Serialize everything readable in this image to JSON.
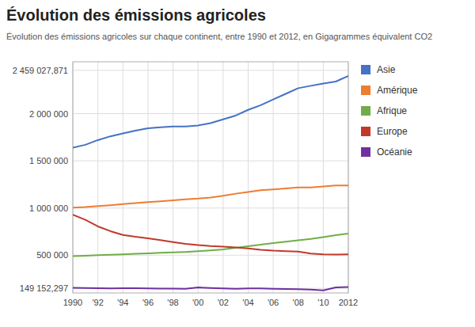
{
  "chart_data": {
    "type": "line",
    "title": "Évolution des émissions agricoles",
    "subtitle": "Évolution des émissions agricoles sur chaque continent, entre 1990 et 2012, en Gigagrammes équivalent CO2",
    "x": [
      1990,
      1991,
      1992,
      1993,
      1994,
      1995,
      1996,
      1997,
      1998,
      1999,
      2000,
      2001,
      2002,
      2003,
      2004,
      2005,
      2006,
      2007,
      2008,
      2009,
      2010,
      2011,
      2012
    ],
    "series": [
      {
        "name": "Asie",
        "color": "#4472C4",
        "values": [
          1640000,
          1670000,
          1720000,
          1760000,
          1790000,
          1820000,
          1845000,
          1855000,
          1865000,
          1865000,
          1875000,
          1900000,
          1940000,
          1980000,
          2040000,
          2090000,
          2150000,
          2210000,
          2270000,
          2295000,
          2320000,
          2340000,
          2400000
        ]
      },
      {
        "name": "Amérique",
        "color": "#ED7D31",
        "values": [
          1005000,
          1010000,
          1020000,
          1030000,
          1042000,
          1052000,
          1062000,
          1072000,
          1082000,
          1092000,
          1100000,
          1112000,
          1130000,
          1152000,
          1170000,
          1188000,
          1198000,
          1208000,
          1218000,
          1218000,
          1228000,
          1238000,
          1240000
        ]
      },
      {
        "name": "Afrique",
        "color": "#70AD47",
        "values": [
          490000,
          495000,
          500000,
          505000,
          510000,
          515000,
          520000,
          525000,
          530000,
          535000,
          542000,
          552000,
          562000,
          578000,
          595000,
          612000,
          628000,
          643000,
          658000,
          672000,
          692000,
          712000,
          730000
        ]
      },
      {
        "name": "Europe",
        "color": "#C0392B",
        "values": [
          930000,
          875000,
          805000,
          755000,
          715000,
          695000,
          678000,
          660000,
          640000,
          620000,
          608000,
          597000,
          590000,
          582000,
          572000,
          558000,
          548000,
          542000,
          538000,
          518000,
          508000,
          507000,
          508000
        ]
      },
      {
        "name": "Océanie",
        "color": "#7030A0",
        "values": [
          155000,
          152000,
          150000,
          149000,
          150000,
          150000,
          148000,
          147000,
          146000,
          145000,
          158000,
          152000,
          148000,
          145000,
          148000,
          148000,
          145000,
          143000,
          140000,
          135000,
          128000,
          158000,
          163000
        ]
      }
    ],
    "xlim": [
      1990,
      2012
    ],
    "xticks": [
      1990,
      {
        "value": 1992,
        "label": "'92"
      },
      {
        "value": 1994,
        "label": "'94"
      },
      {
        "value": 1996,
        "label": "'96"
      },
      {
        "value": 1998,
        "label": "'98"
      },
      {
        "value": 2000,
        "label": "'00"
      },
      {
        "value": 2002,
        "label": "'02"
      },
      {
        "value": 2004,
        "label": "'04"
      },
      {
        "value": 2006,
        "label": "'06"
      },
      {
        "value": 2008,
        "label": "'08"
      },
      {
        "value": 2010,
        "label": "'10"
      },
      2012
    ],
    "ylim": [
      100000,
      2550000
    ],
    "yticks": [
      {
        "value": 149152,
        "label": "149 152,297"
      },
      {
        "value": 500000,
        "label": "500 000"
      },
      {
        "value": 1000000,
        "label": "1 000 000"
      },
      {
        "value": 1500000,
        "label": "1 500 000"
      },
      {
        "value": 2000000,
        "label": "2 000 000"
      },
      {
        "value": 2459028,
        "label": "2 459 027,871"
      }
    ],
    "grid": true,
    "legend": "right"
  }
}
